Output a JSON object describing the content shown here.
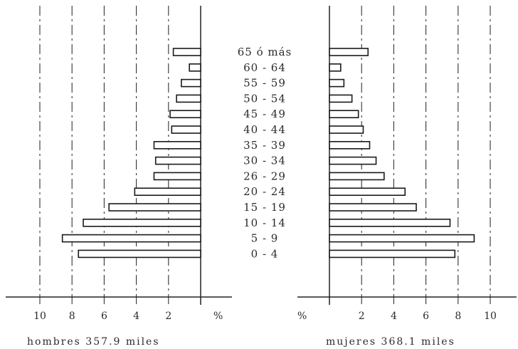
{
  "chart_data": {
    "type": "bar",
    "orientation": "horizontal",
    "subtype": "population-pyramid",
    "categories": [
      "65 ó más",
      "60 - 64",
      "55 - 59",
      "50 - 54",
      "45 - 49",
      "40 - 44",
      "35 - 39",
      "30 - 34",
      "26 - 29",
      "20 - 24",
      "15 - 19",
      "10 - 14",
      "5 - 9",
      "0 - 4"
    ],
    "series": [
      {
        "name": "hombres",
        "caption": "hombres 357.9 miles",
        "values": [
          1.7,
          0.7,
          1.2,
          1.5,
          1.9,
          1.8,
          2.9,
          2.8,
          2.9,
          4.1,
          5.7,
          7.3,
          8.6,
          7.6
        ]
      },
      {
        "name": "mujeres",
        "caption": "mujeres 368.1 miles",
        "values": [
          2.4,
          0.7,
          0.9,
          1.4,
          1.8,
          2.1,
          2.5,
          2.9,
          3.4,
          4.7,
          5.4,
          7.5,
          9.0,
          7.8
        ]
      }
    ],
    "axis_unit": "%",
    "xlim": [
      0,
      10
    ],
    "left_ticks": [
      "10",
      "8",
      "6",
      "4",
      "2"
    ],
    "right_ticks": [
      "2",
      "4",
      "6",
      "8",
      "10"
    ],
    "grid": true
  }
}
